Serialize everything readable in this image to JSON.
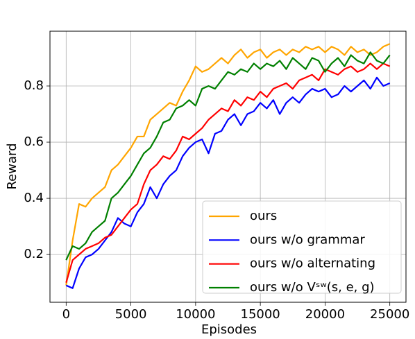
{
  "chart_data": {
    "type": "line",
    "xlabel": "Episodes",
    "ylabel": "Reward",
    "x": [
      0,
      500,
      1000,
      1500,
      2000,
      2500,
      3000,
      3500,
      4000,
      4500,
      5000,
      5500,
      6000,
      6500,
      7000,
      7500,
      8000,
      8500,
      9000,
      9500,
      10000,
      10500,
      11000,
      11500,
      12000,
      12500,
      13000,
      13500,
      14000,
      14500,
      15000,
      15500,
      16000,
      16500,
      17000,
      17500,
      18000,
      18500,
      19000,
      19500,
      20000,
      20500,
      21000,
      21500,
      22000,
      22500,
      23000,
      23500,
      24000,
      24500,
      25000
    ],
    "series": [
      {
        "name": "ours",
        "color": "#ffa500",
        "values": [
          0.09,
          0.25,
          0.38,
          0.37,
          0.4,
          0.42,
          0.44,
          0.5,
          0.52,
          0.55,
          0.58,
          0.62,
          0.62,
          0.68,
          0.7,
          0.72,
          0.74,
          0.73,
          0.78,
          0.82,
          0.87,
          0.85,
          0.86,
          0.88,
          0.9,
          0.88,
          0.91,
          0.93,
          0.9,
          0.92,
          0.93,
          0.9,
          0.92,
          0.93,
          0.91,
          0.93,
          0.92,
          0.94,
          0.93,
          0.94,
          0.92,
          0.94,
          0.93,
          0.91,
          0.94,
          0.92,
          0.93,
          0.91,
          0.92,
          0.94,
          0.95
        ]
      },
      {
        "name": "ours w/o grammar",
        "color": "#0000ff",
        "values": [
          0.09,
          0.08,
          0.15,
          0.19,
          0.2,
          0.22,
          0.25,
          0.28,
          0.33,
          0.31,
          0.3,
          0.35,
          0.38,
          0.44,
          0.4,
          0.45,
          0.48,
          0.5,
          0.55,
          0.58,
          0.6,
          0.61,
          0.56,
          0.63,
          0.64,
          0.68,
          0.7,
          0.66,
          0.7,
          0.71,
          0.74,
          0.72,
          0.75,
          0.7,
          0.74,
          0.76,
          0.74,
          0.77,
          0.79,
          0.78,
          0.79,
          0.76,
          0.77,
          0.8,
          0.78,
          0.8,
          0.82,
          0.79,
          0.83,
          0.8,
          0.81
        ]
      },
      {
        "name": "ours w/o alternating",
        "color": "#ff0000",
        "values": [
          0.1,
          0.18,
          0.2,
          0.22,
          0.23,
          0.24,
          0.26,
          0.27,
          0.3,
          0.33,
          0.36,
          0.38,
          0.45,
          0.5,
          0.52,
          0.55,
          0.54,
          0.57,
          0.62,
          0.61,
          0.63,
          0.65,
          0.68,
          0.7,
          0.72,
          0.71,
          0.75,
          0.73,
          0.76,
          0.75,
          0.78,
          0.76,
          0.79,
          0.8,
          0.81,
          0.79,
          0.82,
          0.83,
          0.84,
          0.82,
          0.86,
          0.85,
          0.84,
          0.86,
          0.87,
          0.85,
          0.86,
          0.88,
          0.86,
          0.88,
          0.87
        ]
      },
      {
        "name": "ours w/o Vˢʷ(s, e, g)",
        "color": "#008000",
        "values": [
          0.18,
          0.23,
          0.22,
          0.24,
          0.28,
          0.3,
          0.32,
          0.4,
          0.42,
          0.45,
          0.48,
          0.52,
          0.56,
          0.58,
          0.62,
          0.67,
          0.68,
          0.72,
          0.73,
          0.75,
          0.73,
          0.79,
          0.8,
          0.79,
          0.82,
          0.85,
          0.84,
          0.86,
          0.85,
          0.88,
          0.86,
          0.88,
          0.87,
          0.89,
          0.86,
          0.9,
          0.88,
          0.86,
          0.9,
          0.89,
          0.85,
          0.88,
          0.9,
          0.87,
          0.91,
          0.89,
          0.88,
          0.92,
          0.89,
          0.88,
          0.91
        ]
      }
    ],
    "xlim": [
      -1250,
      26250
    ],
    "ylim": [
      0.03,
      0.995
    ],
    "xticks": [
      0,
      5000,
      10000,
      15000,
      20000,
      25000
    ],
    "yticks": [
      0.2,
      0.4,
      0.6,
      0.8
    ],
    "grid": true,
    "legend": "lower right"
  }
}
